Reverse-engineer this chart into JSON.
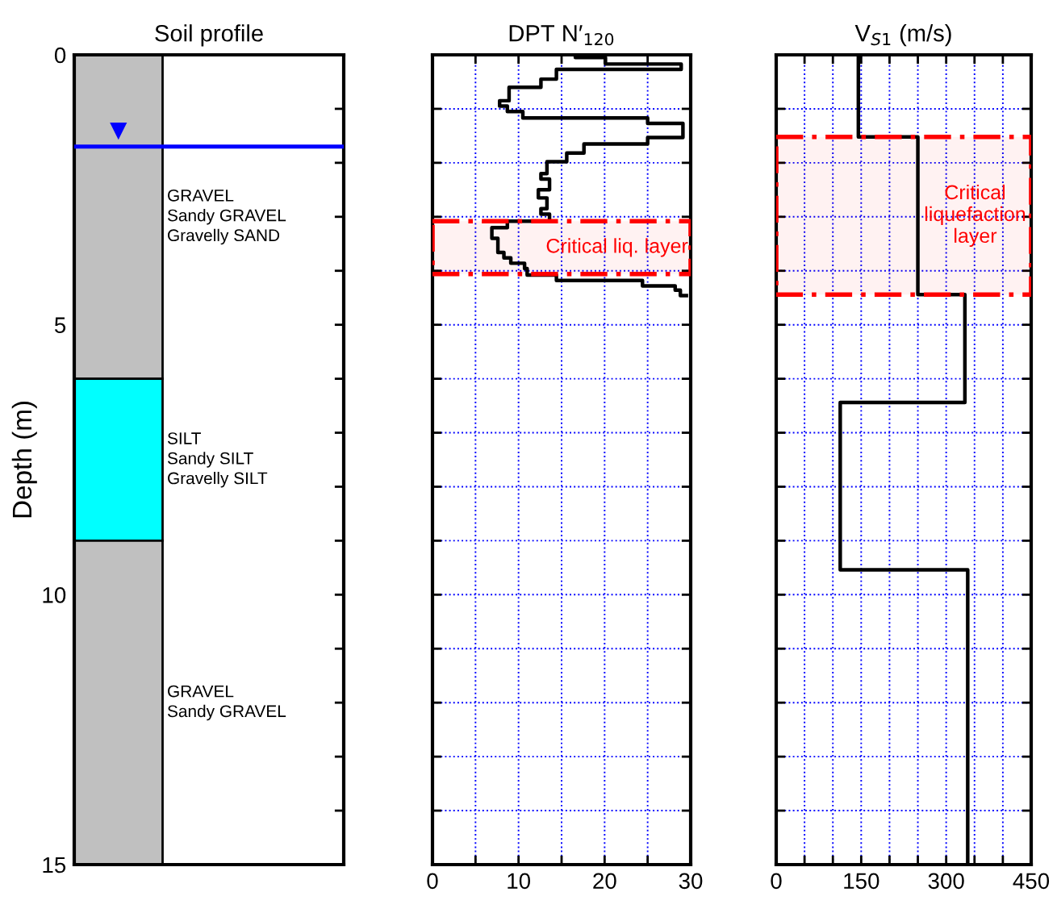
{
  "chart_data": [
    {
      "type": "bar",
      "title": "Soil profile",
      "ylabel": "Depth (m)",
      "categories": [
        null
      ],
      "stacked": true,
      "series": [
        {
          "color": "#c0c0c0",
          "values": [
            6
          ]
        },
        {
          "color": "#00ffff",
          "values": [
            3
          ]
        },
        {
          "color": "#c0c0c0",
          "values": [
            6
          ]
        }
      ],
      "ylim": [
        15,
        0
      ],
      "yticks": [
        0,
        {
          "value": 1,
          "label": null
        },
        {
          "value": 2,
          "label": null
        },
        {
          "value": 3,
          "label": null
        },
        {
          "value": 4,
          "label": null
        },
        5,
        {
          "value": 6,
          "label": null
        },
        {
          "value": 7,
          "label": null
        },
        {
          "value": 8,
          "label": null
        },
        {
          "value": 9,
          "label": null
        },
        10,
        {
          "value": 11,
          "label": null
        },
        {
          "value": 12,
          "label": null
        },
        {
          "value": 13,
          "label": null
        },
        {
          "value": 14,
          "label": null
        },
        15
      ],
      "ref_lines": [
        {
          "axis": "y",
          "value": 1.7,
          "label": null,
          "color": "#0000ff"
        }
      ],
      "annotations": [
        "GRAVEL\nSandy GRAVEL\nGravelly SAND",
        "SILT\nSandy SILT\nGravelly SILT",
        "GRAVEL\nSandy GRAVEL"
      ],
      "tick_labels": "y"
    },
    {
      "type": "line",
      "title": "DPT N′$_{120}$",
      "series": [
        {
          "color": "#000000",
          "x": [
            16.6,
            16.6,
            20.1,
            20.1,
            28.9,
            28.9,
            14.4,
            14.4,
            12.6,
            12.6,
            8.9,
            8.9,
            7.8,
            7.8,
            8.7,
            8.7,
            10.5,
            10.5,
            25.0,
            25.0,
            29.1,
            29.1,
            25.0,
            25.0,
            17.6,
            17.6,
            15.6,
            15.6,
            13.3,
            13.3,
            12.6,
            12.6,
            13.6,
            13.6,
            12.3,
            12.3,
            13.3,
            13.3,
            12.6,
            12.6,
            13.6,
            13.6,
            8.7,
            8.7,
            6.9,
            6.9,
            7.6,
            7.6,
            8.3,
            8.3,
            9.1,
            9.1,
            10.7,
            10.7,
            11.0,
            11.0,
            14.4,
            14.4,
            24.4,
            24.4,
            28.2,
            28.2,
            28.8,
            28.8,
            29.5
          ],
          "values": [
            0,
            0.05,
            0.05,
            0.17,
            0.17,
            0.27,
            0.27,
            0.45,
            0.45,
            0.6,
            0.6,
            0.85,
            0.85,
            0.95,
            0.95,
            1.05,
            1.05,
            1.17,
            1.17,
            1.27,
            1.27,
            1.53,
            1.53,
            1.65,
            1.65,
            1.82,
            1.82,
            1.98,
            1.98,
            2.2,
            2.2,
            2.3,
            2.3,
            2.5,
            2.5,
            2.65,
            2.65,
            2.85,
            2.85,
            2.95,
            2.95,
            3.08,
            3.08,
            3.2,
            3.2,
            3.4,
            3.4,
            3.66,
            3.66,
            3.76,
            3.76,
            3.86,
            3.86,
            3.96,
            3.96,
            4.08,
            4.08,
            4.18,
            4.18,
            4.28,
            4.28,
            4.36,
            4.36,
            4.46,
            4.46
          ]
        }
      ],
      "xlim": [
        0,
        30
      ],
      "xticks": [
        0,
        {
          "value": 5,
          "label": null
        },
        10,
        {
          "value": 15,
          "label": null
        },
        20,
        {
          "value": 25,
          "label": null
        },
        30
      ],
      "ylim": [
        15,
        0
      ],
      "yticks": [
        0,
        {
          "value": 1,
          "label": null
        },
        {
          "value": 2,
          "label": null
        },
        {
          "value": 3,
          "label": null
        },
        {
          "value": 4,
          "label": null
        },
        {
          "value": 5,
          "label": null
        },
        {
          "value": 6,
          "label": null
        },
        {
          "value": 7,
          "label": null
        },
        {
          "value": 8,
          "label": null
        },
        {
          "value": 9,
          "label": null
        },
        {
          "value": 10,
          "label": null
        },
        {
          "value": 11,
          "label": null
        },
        {
          "value": 12,
          "label": null
        },
        {
          "value": 13,
          "label": null
        },
        {
          "value": 14,
          "label": null
        },
        15
      ],
      "bands": [
        {
          "axis": "y",
          "from": 3.08,
          "to": 4.06,
          "label": "Critical liq. layer",
          "color": "#ff0000"
        }
      ],
      "grid": true,
      "tick_labels": "x",
      "line_style": "solid"
    },
    {
      "type": "line",
      "title": "V$_{S1}$ (m/s)",
      "series": [
        {
          "color": "#000000",
          "x": [
            145,
            145,
            250,
            250,
            333,
            333,
            113,
            113,
            338,
            338
          ],
          "values": [
            0,
            1.52,
            1.52,
            4.44,
            4.44,
            6.44,
            6.44,
            9.54,
            9.54,
            15
          ]
        }
      ],
      "xlim": [
        0,
        450
      ],
      "xticks": [
        0,
        {
          "value": 50,
          "label": null
        },
        {
          "value": 100,
          "label": null
        },
        150,
        {
          "value": 200,
          "label": null
        },
        {
          "value": 250,
          "label": null
        },
        300,
        {
          "value": 350,
          "label": null
        },
        {
          "value": 400,
          "label": null
        },
        450
      ],
      "ylim": [
        15,
        0
      ],
      "yticks": [
        0,
        {
          "value": 1,
          "label": null
        },
        {
          "value": 2,
          "label": null
        },
        {
          "value": 3,
          "label": null
        },
        {
          "value": 4,
          "label": null
        },
        {
          "value": 5,
          "label": null
        },
        {
          "value": 6,
          "label": null
        },
        {
          "value": 7,
          "label": null
        },
        {
          "value": 8,
          "label": null
        },
        {
          "value": 9,
          "label": null
        },
        {
          "value": 10,
          "label": null
        },
        {
          "value": 11,
          "label": null
        },
        {
          "value": 12,
          "label": null
        },
        {
          "value": 13,
          "label": null
        },
        {
          "value": 14,
          "label": null
        },
        15
      ],
      "bands": [
        {
          "axis": "y",
          "from": 1.52,
          "to": 4.44,
          "label": "Critical\nliquefaction\nlayer",
          "color": "#ff0000"
        }
      ],
      "grid": true,
      "tick_labels": "x",
      "line_style": "solid"
    }
  ]
}
